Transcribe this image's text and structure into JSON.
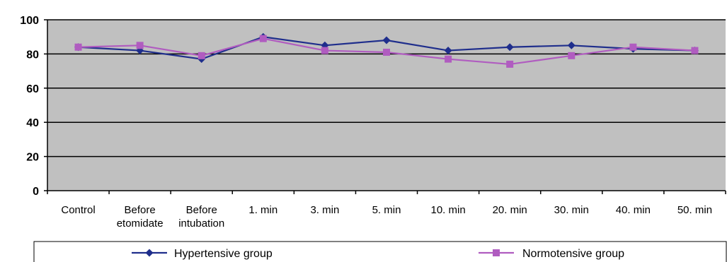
{
  "chart_data": {
    "type": "line",
    "categories": [
      [
        "Control"
      ],
      [
        "Before",
        "etomidate"
      ],
      [
        "Before",
        "intubation"
      ],
      [
        "1. min"
      ],
      [
        "3. min"
      ],
      [
        "5. min"
      ],
      [
        "10. min"
      ],
      [
        "20. min"
      ],
      [
        "30. min"
      ],
      [
        "40. min"
      ],
      [
        "50. min"
      ]
    ],
    "series": [
      {
        "name": "Hypertensive group",
        "color": "#1f2e8c",
        "marker": "diamond",
        "values": [
          84,
          82,
          77,
          90,
          85,
          88,
          82,
          84,
          85,
          83,
          82
        ]
      },
      {
        "name": "Normotensive group",
        "color": "#b05cc0",
        "marker": "square",
        "values": [
          84,
          85,
          79,
          89,
          82,
          81,
          77,
          74,
          79,
          84,
          82
        ]
      }
    ],
    "ylim": [
      0,
      100
    ],
    "yticks": [
      0,
      20,
      40,
      60,
      80,
      100
    ],
    "grid": true,
    "plot_background": "#c0c0c0",
    "legend_position": "bottom"
  }
}
